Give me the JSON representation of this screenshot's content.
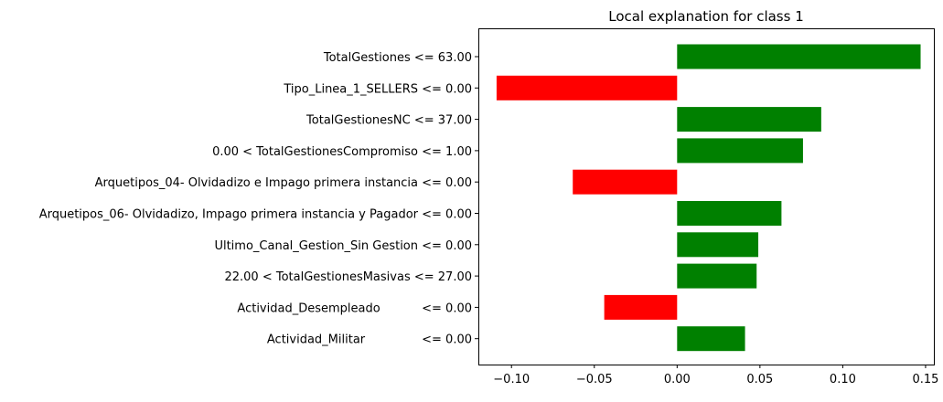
{
  "chart_data": {
    "type": "bar",
    "orientation": "horizontal",
    "title": "Local explanation for class 1",
    "xlabel": "",
    "ylabel": "",
    "xlim": [
      -0.12,
      0.155
    ],
    "x_ticks": [
      -0.1,
      -0.05,
      0.0,
      0.05,
      0.1,
      0.15
    ],
    "x_tick_labels": [
      "−0.10",
      "−0.05",
      "0.00",
      "0.05",
      "0.10",
      "0.15"
    ],
    "grid": false,
    "legend": "none",
    "colors": {
      "positive": "#008000",
      "negative": "#ff0000"
    },
    "categories": [
      "TotalGestiones <= 63.00",
      "Tipo_Linea_1_SELLERS <= 0.00",
      "TotalGestionesNC <= 37.00",
      "0.00 < TotalGestionesCompromiso <= 1.00",
      "Arquetipos_04- Olvidadizo e Impago primera instancia <= 0.00",
      "Arquetipos_06- Olvidadizo, Impago primera instancia y Pagador <= 0.00",
      "Ultimo_Canal_Gestion_Sin Gestion <= 0.00",
      "22.00 < TotalGestionesMasivas <= 27.00",
      "Actividad_Desempleado           <= 0.00",
      "Actividad_Militar               <= 0.00"
    ],
    "values": [
      0.147,
      -0.109,
      0.087,
      0.076,
      -0.063,
      0.063,
      0.049,
      0.048,
      -0.044,
      0.041
    ]
  }
}
